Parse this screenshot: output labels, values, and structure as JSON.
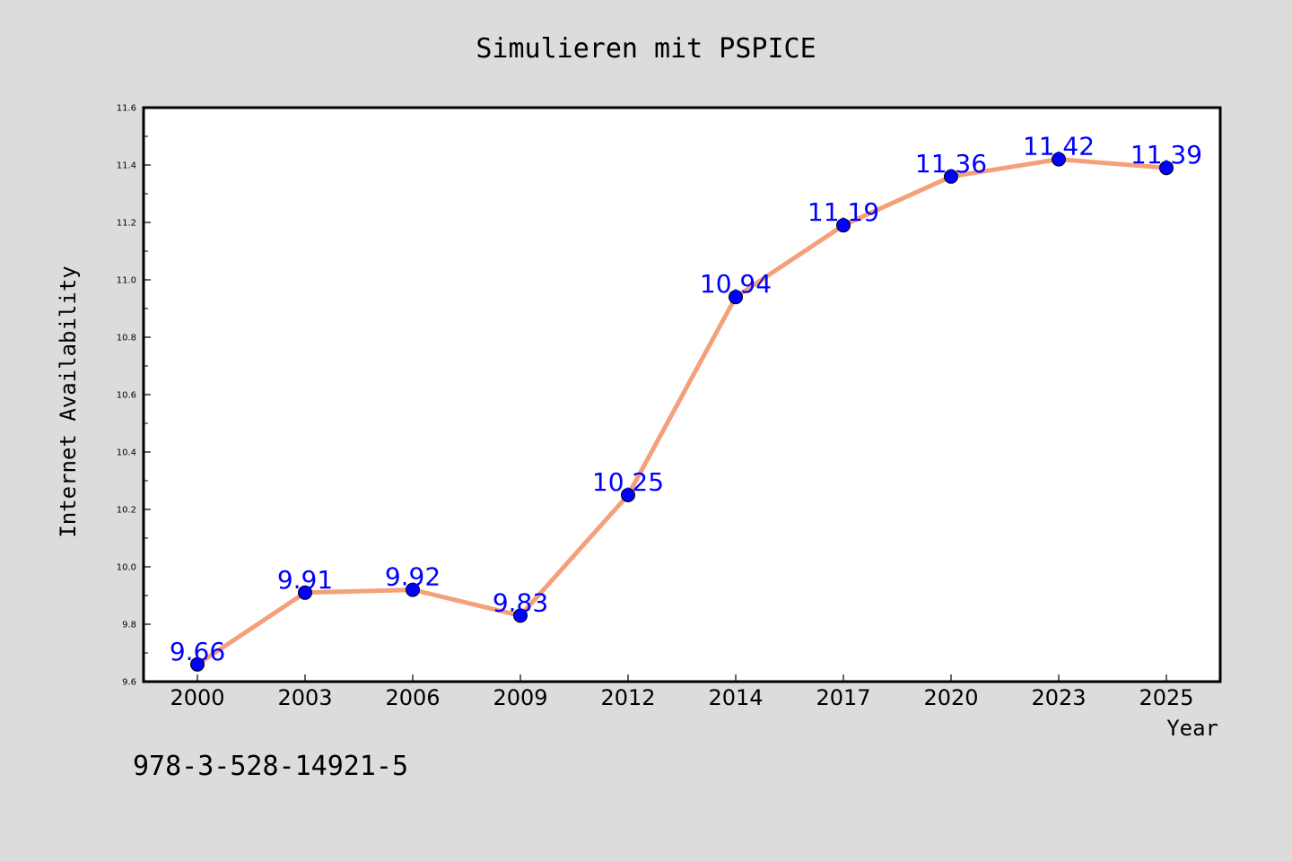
{
  "chart_data": {
    "type": "line",
    "title": "Simulieren mit PSPICE",
    "xlabel": "Year",
    "ylabel": "Internet Availability",
    "categories": [
      "2000",
      "2003",
      "2006",
      "2009",
      "2012",
      "2014",
      "2017",
      "2020",
      "2023",
      "2025"
    ],
    "series": [
      {
        "values": [
          9.66,
          9.91,
          9.92,
          9.83,
          10.25,
          10.94,
          11.19,
          11.36,
          11.42,
          11.39
        ]
      }
    ],
    "data_labels": [
      "9.66",
      "9.91",
      "9.92",
      "9.83",
      "10.25",
      "10.94",
      "11.19",
      "11.36",
      "11.42",
      "11.39"
    ],
    "ylim": [
      9.6,
      11.6
    ],
    "yticks": [
      9.6,
      9.8,
      10.0,
      10.2,
      10.4,
      10.6,
      10.8,
      11.0,
      11.2,
      11.4,
      11.6
    ],
    "ytick_labels": [
      "9.6",
      "9.8",
      "10.0",
      "10.2",
      "10.4",
      "10.6",
      "10.8",
      "11.0",
      "11.2",
      "11.4",
      "11.6"
    ],
    "grid": false,
    "legend": "none",
    "colors": {
      "figure_background": "#dcdcdc",
      "plot_background": "#ffffff",
      "line": "#f4a07a",
      "marker": "#0000ff",
      "data_label": "#0000ff",
      "axes": "#000000"
    }
  },
  "footnote": "978-3-528-14921-5"
}
